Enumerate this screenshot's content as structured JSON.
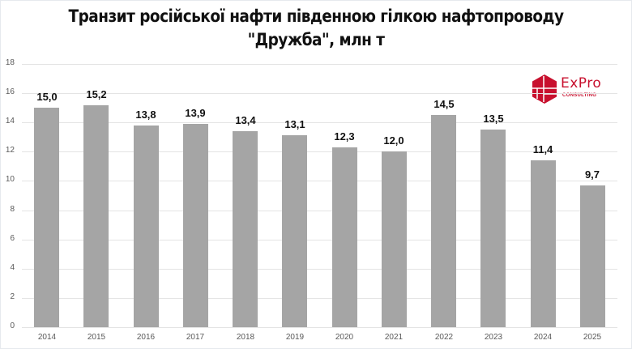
{
  "chart_data": {
    "type": "bar",
    "title": "Транзит російської нафти південною гілкою нафтопроводу \"Дружба\", млн т",
    "title_lines": [
      "Транзит російської нафти південною гілкою нафтопроводу",
      "\"Дружба\", млн т"
    ],
    "categories": [
      "2014",
      "2015",
      "2016",
      "2017",
      "2018",
      "2019",
      "2020",
      "2021",
      "2022",
      "2023",
      "2024",
      "2025"
    ],
    "values": [
      15.0,
      15.2,
      13.8,
      13.9,
      13.4,
      13.1,
      12.3,
      12.0,
      14.5,
      13.5,
      11.4,
      9.7
    ],
    "data_labels": [
      "15,0",
      "15,2",
      "13,8",
      "13,9",
      "13,4",
      "13,1",
      "12,3",
      "12,0",
      "14,5",
      "13,5",
      "11,4",
      "9,7"
    ],
    "xlabel": "",
    "ylabel": "",
    "ylim": [
      0,
      18
    ],
    "yticks": [
      "0",
      "2",
      "4",
      "6",
      "8",
      "10",
      "12",
      "14",
      "16",
      "18"
    ],
    "grid": true,
    "legend": null,
    "bar_color": "#a5a5a5"
  },
  "logo": {
    "name": "ExPro",
    "subtitle": "CONSULTING",
    "color": "#c8102e"
  }
}
